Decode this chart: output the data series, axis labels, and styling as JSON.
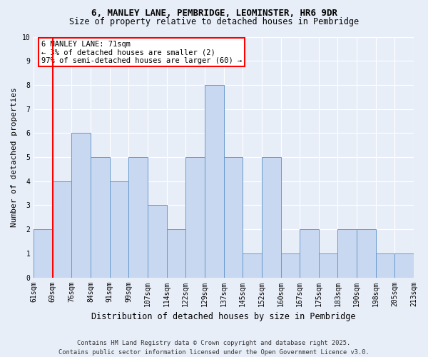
{
  "title1": "6, MANLEY LANE, PEMBRIDGE, LEOMINSTER, HR6 9DR",
  "title2": "Size of property relative to detached houses in Pembridge",
  "xlabel": "Distribution of detached houses by size in Pembridge",
  "ylabel": "Number of detached properties",
  "bins": [
    "61sqm",
    "69sqm",
    "76sqm",
    "84sqm",
    "91sqm",
    "99sqm",
    "107sqm",
    "114sqm",
    "122sqm",
    "129sqm",
    "137sqm",
    "145sqm",
    "152sqm",
    "160sqm",
    "167sqm",
    "175sqm",
    "183sqm",
    "190sqm",
    "198sqm",
    "205sqm",
    "213sqm"
  ],
  "values": [
    2,
    4,
    6,
    5,
    4,
    5,
    3,
    2,
    5,
    8,
    5,
    1,
    5,
    1,
    2,
    1,
    2,
    2,
    1,
    1
  ],
  "bar_color": "#c8d8f0",
  "bar_edge_color": "#6699cc",
  "background_color": "#e8eef8",
  "grid_color": "#ffffff",
  "annotation_line1": "6 MANLEY LANE: 71sqm",
  "annotation_line2": "← 3% of detached houses are smaller (2)",
  "annotation_line3": "97% of semi-detached houses are larger (60) →",
  "ylim": [
    0,
    10
  ],
  "yticks": [
    0,
    1,
    2,
    3,
    4,
    5,
    6,
    7,
    8,
    9,
    10
  ],
  "footer": "Contains HM Land Registry data © Crown copyright and database right 2025.\nContains public sector information licensed under the Open Government Licence v3.0."
}
